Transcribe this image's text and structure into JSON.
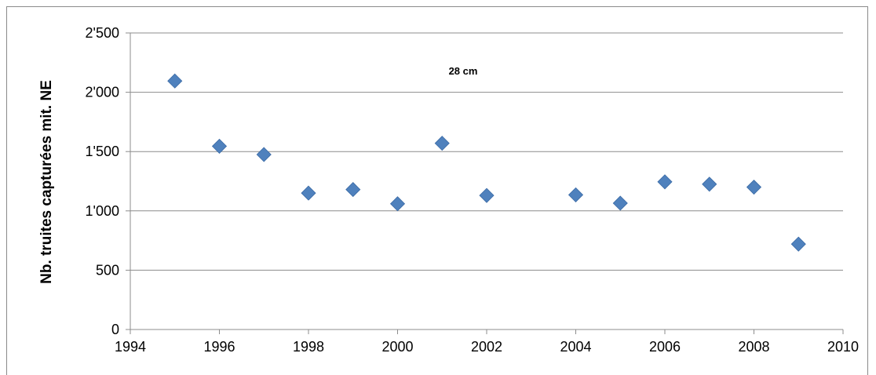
{
  "chart_data": {
    "type": "scatter",
    "title": "",
    "annotation": "28 cm",
    "xlabel": "",
    "ylabel": "Nb. truites capturées mit. NE",
    "xlim": [
      1994,
      2010
    ],
    "ylim": [
      0,
      2500
    ],
    "x_ticks": [
      "1994",
      "1996",
      "1998",
      "2000",
      "2002",
      "2004",
      "2006",
      "2008",
      "2010"
    ],
    "x_tick_values": [
      1994,
      1996,
      1998,
      2000,
      2002,
      2004,
      2006,
      2008,
      2010
    ],
    "y_ticks": [
      "0",
      "500",
      "1'000",
      "1'500",
      "2'000",
      "2'500"
    ],
    "y_tick_values": [
      0,
      500,
      1000,
      1500,
      2000,
      2500
    ],
    "grid": "horizontal",
    "marker": "diamond",
    "marker_color": "#4f81bd",
    "series": [
      {
        "points": [
          {
            "x": 1995,
            "y": 2095
          },
          {
            "x": 1996,
            "y": 1545
          },
          {
            "x": 1997,
            "y": 1475
          },
          {
            "x": 1998,
            "y": 1150
          },
          {
            "x": 1999,
            "y": 1180
          },
          {
            "x": 2000,
            "y": 1060
          },
          {
            "x": 2001,
            "y": 1570
          },
          {
            "x": 2002,
            "y": 1130
          },
          {
            "x": 2004,
            "y": 1135
          },
          {
            "x": 2005,
            "y": 1065
          },
          {
            "x": 2006,
            "y": 1245
          },
          {
            "x": 2007,
            "y": 1225
          },
          {
            "x": 2008,
            "y": 1200
          },
          {
            "x": 2009,
            "y": 720
          }
        ]
      }
    ]
  }
}
